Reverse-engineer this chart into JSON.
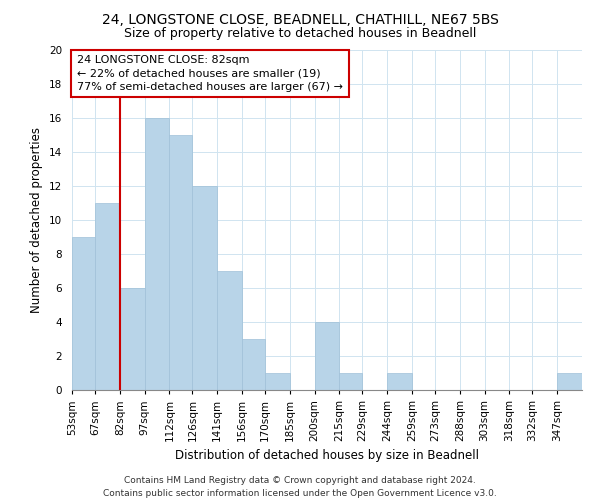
{
  "title1": "24, LONGSTONE CLOSE, BEADNELL, CHATHILL, NE67 5BS",
  "title2": "Size of property relative to detached houses in Beadnell",
  "xlabel": "Distribution of detached houses by size in Beadnell",
  "ylabel": "Number of detached properties",
  "bin_labels": [
    "53sqm",
    "67sqm",
    "82sqm",
    "97sqm",
    "112sqm",
    "126sqm",
    "141sqm",
    "156sqm",
    "170sqm",
    "185sqm",
    "200sqm",
    "215sqm",
    "229sqm",
    "244sqm",
    "259sqm",
    "273sqm",
    "288sqm",
    "303sqm",
    "318sqm",
    "332sqm",
    "347sqm"
  ],
  "bin_edges": [
    53,
    67,
    82,
    97,
    112,
    126,
    141,
    156,
    170,
    185,
    200,
    215,
    229,
    244,
    259,
    273,
    288,
    303,
    318,
    332,
    347,
    362
  ],
  "bar_heights": [
    9,
    11,
    6,
    16,
    15,
    12,
    7,
    3,
    1,
    0,
    4,
    1,
    0,
    1,
    0,
    0,
    0,
    0,
    0,
    0,
    1
  ],
  "bar_color": "#b8d4e8",
  "bar_edge_color": "#a0c0d8",
  "red_line_x": 82,
  "annotation_title": "24 LONGSTONE CLOSE: 82sqm",
  "annotation_line1": "← 22% of detached houses are smaller (19)",
  "annotation_line2": "77% of semi-detached houses are larger (67) →",
  "annotation_box_color": "#ffffff",
  "annotation_box_edge": "#cc0000",
  "red_line_color": "#cc0000",
  "ylim": [
    0,
    20
  ],
  "yticks": [
    0,
    2,
    4,
    6,
    8,
    10,
    12,
    14,
    16,
    18,
    20
  ],
  "footer1": "Contains HM Land Registry data © Crown copyright and database right 2024.",
  "footer2": "Contains public sector information licensed under the Open Government Licence v3.0.",
  "title_fontsize": 10,
  "subtitle_fontsize": 9,
  "axis_label_fontsize": 8.5,
  "tick_fontsize": 7.5,
  "annotation_fontsize": 8,
  "footer_fontsize": 6.5,
  "grid_color": "#d0e4f0"
}
